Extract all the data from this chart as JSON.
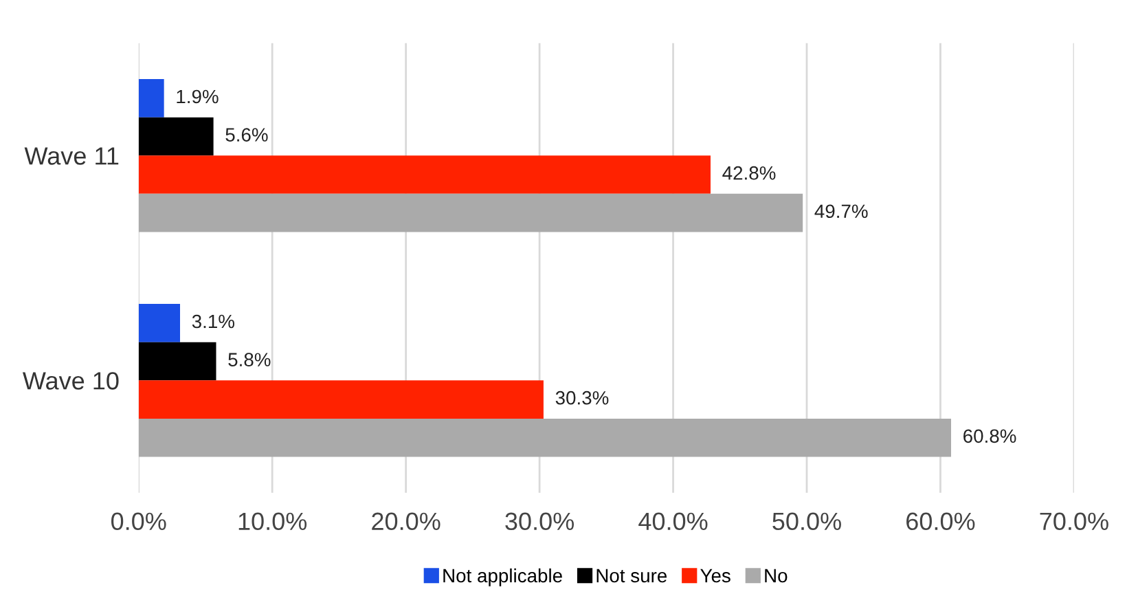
{
  "chart_data": {
    "type": "bar",
    "orientation": "horizontal",
    "categories": [
      "Wave 11",
      "Wave 10"
    ],
    "series": [
      {
        "name": "Not applicable",
        "color": "#1a4fe6",
        "values": [
          1.9,
          3.1
        ],
        "value_labels": [
          "1.9%",
          "3.1%"
        ]
      },
      {
        "name": "Not sure",
        "color": "#000000",
        "values": [
          5.6,
          5.8
        ],
        "value_labels": [
          "5.6%",
          "5.8%"
        ]
      },
      {
        "name": "Yes",
        "color": "#ff2200",
        "values": [
          42.8,
          30.3
        ],
        "value_labels": [
          "42.8%",
          "30.3%"
        ]
      },
      {
        "name": "No",
        "color": "#aaaaaa",
        "values": [
          49.7,
          60.8
        ],
        "value_labels": [
          "49.7%",
          "60.8%"
        ]
      }
    ],
    "xlim": [
      0,
      70
    ],
    "xticks": [
      {
        "value": 0,
        "label": "0.0%"
      },
      {
        "value": 10,
        "label": "10.0%"
      },
      {
        "value": 20,
        "label": "20.0%"
      },
      {
        "value": 30,
        "label": "30.0%"
      },
      {
        "value": 40,
        "label": "40.0%"
      },
      {
        "value": 50,
        "label": "50.0%"
      },
      {
        "value": 60,
        "label": "60.0%"
      },
      {
        "value": 70,
        "label": "70.0%"
      }
    ],
    "grid": "x",
    "legend": "bottom"
  }
}
